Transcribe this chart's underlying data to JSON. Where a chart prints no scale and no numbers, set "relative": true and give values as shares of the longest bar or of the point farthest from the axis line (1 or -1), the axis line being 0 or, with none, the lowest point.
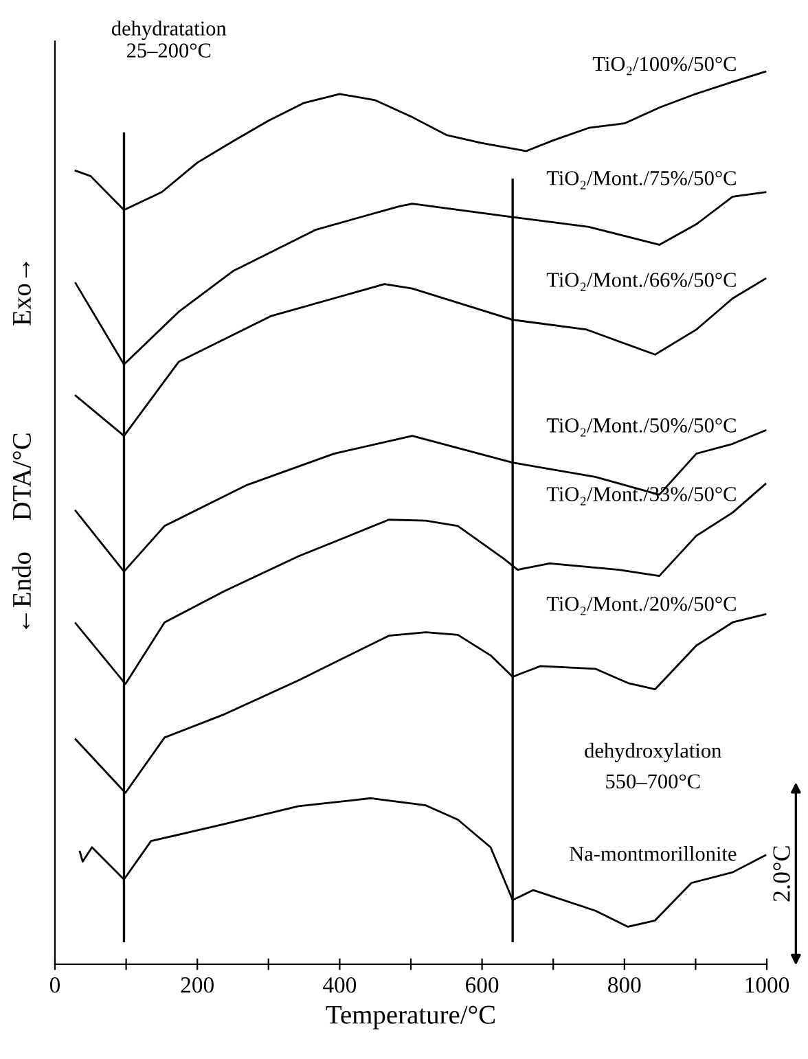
{
  "chart_data": {
    "type": "line",
    "relative": true,
    "xlabel": "Temperature/°C",
    "ylabel": "DTA/°C",
    "xlim": [
      0,
      1000
    ],
    "xticks": [
      0,
      {
        "value": 100,
        "label": null
      },
      200,
      {
        "value": 300,
        "label": null
      },
      400,
      {
        "value": 500,
        "label": null
      },
      600,
      {
        "value": 700,
        "label": null
      },
      800,
      {
        "value": 900,
        "label": null
      },
      1000
    ],
    "line_style": "solid",
    "marker": "none",
    "series": [
      {
        "name": "TiO₂/100%/50°C",
        "color": "#000000",
        "x": [
          29,
          50,
          97,
          150,
          200,
          250,
          300,
          350,
          400,
          450,
          502,
          550,
          600,
          662,
          700,
          750,
          800,
          850,
          900,
          950,
          998
        ],
        "values": [
          0.889,
          0.883,
          0.845,
          0.865,
          0.898,
          0.922,
          0.945,
          0.965,
          0.975,
          0.968,
          0.949,
          0.929,
          0.92,
          0.911,
          0.923,
          0.937,
          0.942,
          0.96,
          0.975,
          0.988,
          1.0
        ]
      },
      {
        "name": "TiO₂/Mont./75%/50°C",
        "color": "#000000",
        "x": [
          29,
          97,
          174,
          251,
          367,
          483,
          502,
          643,
          750,
          849,
          901,
          952,
          998
        ],
        "values": [
          0.763,
          0.672,
          0.731,
          0.777,
          0.823,
          0.849,
          0.852,
          0.837,
          0.826,
          0.806,
          0.829,
          0.86,
          0.865
        ]
      },
      {
        "name": "TiO₂/Mont./66%/50°C",
        "color": "#000000",
        "x": [
          29,
          97,
          174,
          303,
          463,
          502,
          643,
          747,
          843,
          901,
          952,
          998
        ],
        "values": [
          0.637,
          0.592,
          0.675,
          0.726,
          0.762,
          0.757,
          0.722,
          0.711,
          0.683,
          0.711,
          0.746,
          0.768
        ]
      },
      {
        "name": "TiO₂/Mont./50%/50°C",
        "color": "#000000",
        "x": [
          29,
          97,
          154,
          270,
          392,
          502,
          643,
          759,
          849,
          901,
          952,
          998
        ],
        "values": [
          0.508,
          0.44,
          0.491,
          0.537,
          0.572,
          0.592,
          0.562,
          0.546,
          0.526,
          0.572,
          0.583,
          0.598
        ]
      },
      {
        "name": "TiO₂/Mont./33%/50°C",
        "color": "#000000",
        "x": [
          29,
          99,
          154,
          238,
          342,
          469,
          521,
          566,
          631,
          650,
          695,
          792,
          849,
          901,
          952,
          998
        ],
        "values": [
          0.382,
          0.314,
          0.383,
          0.418,
          0.457,
          0.498,
          0.497,
          0.491,
          0.454,
          0.442,
          0.449,
          0.442,
          0.435,
          0.48,
          0.506,
          0.538
        ]
      },
      {
        "name": "TiO₂/Mont./20%/50°C",
        "color": "#000000",
        "x": [
          29,
          99,
          154,
          238,
          342,
          469,
          521,
          566,
          612,
          643,
          682,
          759,
          805,
          843,
          901,
          952,
          998
        ],
        "values": [
          0.252,
          0.192,
          0.254,
          0.28,
          0.318,
          0.368,
          0.372,
          0.369,
          0.346,
          0.322,
          0.334,
          0.331,
          0.315,
          0.308,
          0.357,
          0.383,
          0.392
        ]
      },
      {
        "name": "Na-montmorillonite",
        "color": "#000000",
        "x": [
          35,
          39,
          52,
          97,
          135,
          238,
          342,
          444,
          521,
          566,
          612,
          643,
          672,
          759,
          805,
          843,
          894,
          952,
          998
        ],
        "values": [
          0.126,
          0.115,
          0.131,
          0.095,
          0.138,
          0.157,
          0.177,
          0.186,
          0.178,
          0.162,
          0.131,
          0.072,
          0.083,
          0.06,
          0.042,
          0.049,
          0.091,
          0.103,
          0.122
        ]
      }
    ],
    "ref_lines": [
      {
        "axis": "x",
        "value": 97,
        "color": "#000000"
      },
      {
        "axis": "x",
        "value": 643,
        "color": "#000000"
      }
    ],
    "annotations": [
      "dehydratation\n25–200°C",
      "dehydroxylation\n550–700°C",
      "Exo→",
      "←Endo",
      "2.0°C"
    ]
  }
}
